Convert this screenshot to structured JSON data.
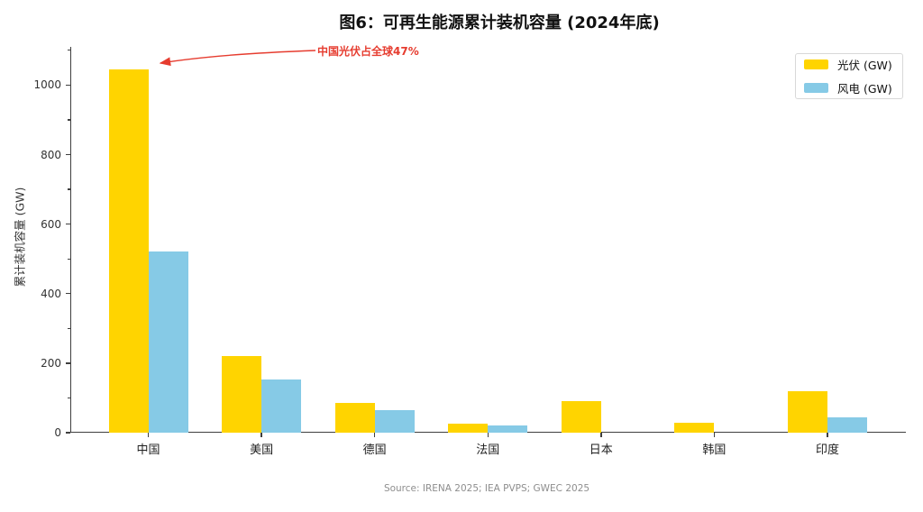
{
  "chart_data": {
    "type": "bar",
    "title": "图6：可再生能源累计装机容量 (2024年底)",
    "categories": [
      "中国",
      "美国",
      "德国",
      "法国",
      "日本",
      "韩国",
      "印度"
    ],
    "series": [
      {
        "name": "光伏 (GW)",
        "color": "#ffd400",
        "values": [
          1045,
          220,
          85,
          25,
          90,
          28,
          120
        ]
      },
      {
        "name": "风电 (GW)",
        "color": "#86cae6",
        "values": [
          520,
          153,
          66,
          20,
          0,
          0,
          45
        ]
      }
    ],
    "xlabel": "",
    "ylabel": "累计装机容量 (GW)",
    "ylim": [
      0,
      1110
    ],
    "yticks_major": [
      0,
      200,
      400,
      600,
      800,
      1000
    ],
    "ytick_minor_step": 100,
    "grid": false,
    "legend_position": "upper right",
    "annotation": {
      "text": "中国光伏占全球47%",
      "color": "#e63c2f",
      "points_to": "中国 光伏 bar top"
    }
  },
  "footer": {
    "source": "Source: IRENA 2025; IEA PVPS; GWEC 2025"
  }
}
